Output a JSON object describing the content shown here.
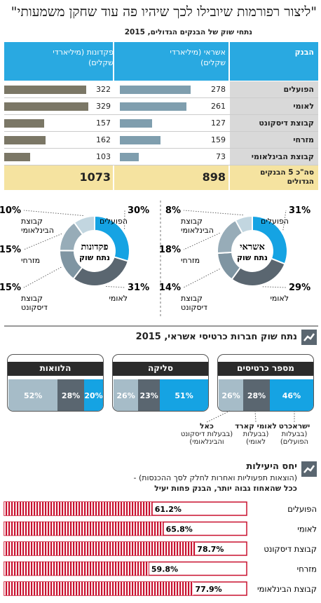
{
  "header": {
    "title": "\"ליצור רפורמות שיובילו לכך שיהיו פה עוד שחקן משמעותי\"",
    "subtitle": "נתחי שוק של הבנקים הגדולים, 2015"
  },
  "bank_table": {
    "col_bank": "הבנק",
    "col_credit": "אשראי (מיליארדי שקלים)",
    "col_deposits": "פקדונות (מיליארדי שקלים)",
    "rows": [
      {
        "bank": "הפועלים",
        "credit": 278,
        "deposits": 322
      },
      {
        "bank": "לאומי",
        "credit": 261,
        "deposits": 329
      },
      {
        "bank": "קבוצת דיסקונט",
        "credit": 127,
        "deposits": 157
      },
      {
        "bank": "מזרחי",
        "credit": 159,
        "deposits": 162
      },
      {
        "bank": "קבוצת הבינלאומי",
        "credit": 73,
        "deposits": 103
      }
    ],
    "total_label": "סה\"כ 5 הבנקים הגדולים",
    "total_credit": 898,
    "total_deposits": 1073,
    "colors": {
      "header": "#29a9e1",
      "credit_bar": "#7f9eae",
      "deposit_bar": "#7b7766",
      "total_bg": "#f5e3a0",
      "bank_bg": "#d9d9d9"
    }
  },
  "donuts": [
    {
      "id": "deposits",
      "center_line1": "פקדונות",
      "center_line2": "נתח שוק",
      "slices": [
        {
          "label": "הפועלים",
          "value": 30,
          "color": "#15a3e3"
        },
        {
          "label": "לאומי",
          "value": 31,
          "color": "#5a6670"
        },
        {
          "label": "קבוצת דיסקונט",
          "value": 15,
          "color": "#7f95a2"
        },
        {
          "label": "מזרחי",
          "value": 15,
          "color": "#97acb8"
        },
        {
          "label": "קבוצת הבינלאומי",
          "value": 10,
          "color": "#c2d6e0"
        }
      ]
    },
    {
      "id": "credit",
      "center_line1": "אשראי",
      "center_line2": "נתח שוק",
      "slices": [
        {
          "label": "הפועלים",
          "value": 31,
          "color": "#15a3e3"
        },
        {
          "label": "לאומי",
          "value": 29,
          "color": "#5a6670"
        },
        {
          "label": "קבוצת דיסקונט",
          "value": 14,
          "color": "#7f95a2"
        },
        {
          "label": "מזרחי",
          "value": 18,
          "color": "#97acb8"
        },
        {
          "label": "קבוצת הבינלאומי",
          "value": 8,
          "color": "#c2d6e0"
        }
      ]
    }
  ],
  "cards_section": {
    "title": "נתח שוק חברות כרטיסי אשראי, 2015",
    "panels": [
      {
        "title": "מספר כרטיסים",
        "values": [
          46,
          28,
          26
        ]
      },
      {
        "title": "סליקה",
        "values": [
          51,
          23,
          26
        ]
      },
      {
        "title": "הלוואות",
        "values": [
          20,
          28,
          52
        ]
      }
    ],
    "segment_colors": [
      "#15a3e3",
      "#5a6670",
      "#a6bcc8"
    ],
    "companies": [
      {
        "name": "ישראכרט",
        "owner": "(בבעלות הפועלים)"
      },
      {
        "name": "לאומי קארד",
        "owner": "(בבעלות לאומי)"
      },
      {
        "name": "כאל",
        "owner": "(בבעלות דיסקונט והבינלאומי)"
      }
    ]
  },
  "efficiency": {
    "title": "יחס היעילות",
    "desc1": "(הוצאות תפעוליות ואחרות לחלק לסך ההכנסות) -",
    "desc2": "ככל שהאחוז גבוה יותר, הבנק פחות יעיל",
    "chart_data": {
      "type": "bar",
      "categories": [
        "הפועלים",
        "לאומי",
        "קבוצת דיסקונט",
        "מזרחי",
        "קבוצת הבינלאומי"
      ],
      "values": [
        61.2,
        65.8,
        78.7,
        59.8,
        77.9
      ],
      "value_labels": [
        "61.2%",
        "65.8%",
        "78.7%",
        "59.8%",
        "77.9%"
      ],
      "xlim": [
        0,
        100
      ]
    },
    "bar_color": "#c8102e"
  }
}
